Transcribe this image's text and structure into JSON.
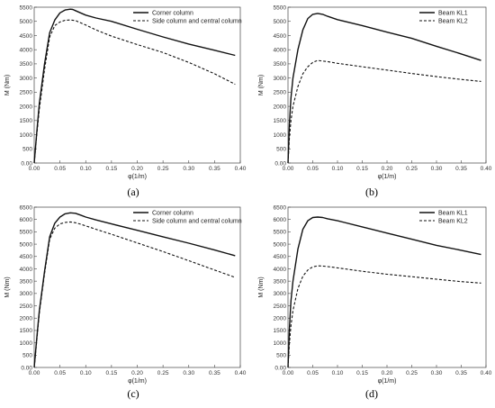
{
  "chart_data": [
    {
      "type": "line",
      "panel_label": "(a)",
      "xlabel": "φ(1/m)",
      "ylabel": "M (Nm)",
      "xlim": [
        0,
        0.4
      ],
      "ylim": [
        0,
        5500
      ],
      "xticks": [
        "0.00",
        "0.05",
        "0.10",
        "0.15",
        "0.20",
        "0.25",
        "0.30",
        "0.35",
        "0.40"
      ],
      "yticks": [
        "0.00",
        "500",
        "1000",
        "1500",
        "2000",
        "2500",
        "3000",
        "3500",
        "4000",
        "4500",
        "5000",
        "5500"
      ],
      "legend_position": "top-right",
      "series": [
        {
          "name": "Corner column",
          "style": "solid",
          "x": [
            0,
            0.005,
            0.01,
            0.02,
            0.03,
            0.04,
            0.05,
            0.06,
            0.07,
            0.075,
            0.08,
            0.09,
            0.1,
            0.12,
            0.15,
            0.2,
            0.25,
            0.3,
            0.35,
            0.39
          ],
          "y": [
            0,
            1100,
            2100,
            3500,
            4600,
            5050,
            5300,
            5400,
            5430,
            5420,
            5380,
            5300,
            5220,
            5120,
            5000,
            4720,
            4450,
            4200,
            3980,
            3800
          ]
        },
        {
          "name": "Side column and central column",
          "style": "dashed",
          "x": [
            0,
            0.005,
            0.01,
            0.02,
            0.03,
            0.04,
            0.05,
            0.06,
            0.07,
            0.08,
            0.09,
            0.1,
            0.12,
            0.15,
            0.2,
            0.25,
            0.3,
            0.35,
            0.39
          ],
          "y": [
            0,
            1000,
            1900,
            3300,
            4450,
            4850,
            4980,
            5040,
            5050,
            5030,
            4950,
            4870,
            4700,
            4480,
            4180,
            3900,
            3550,
            3150,
            2780
          ]
        }
      ]
    },
    {
      "type": "line",
      "panel_label": "(b)",
      "xlabel": "φ(1/m)",
      "ylabel": "M (Nm)",
      "xlim": [
        0,
        0.4
      ],
      "ylim": [
        0,
        5500
      ],
      "xticks": [
        "0.00",
        "0.05",
        "0.10",
        "0.15",
        "0.20",
        "0.25",
        "0.30",
        "0.35",
        "0.40"
      ],
      "yticks": [
        "0.00",
        "500",
        "1000",
        "1500",
        "2000",
        "2500",
        "3000",
        "3500",
        "4000",
        "4500",
        "5000",
        "5500"
      ],
      "legend_position": "top-right",
      "series": [
        {
          "name": "Beam KL1",
          "style": "solid",
          "x": [
            0,
            0.003,
            0.006,
            0.01,
            0.02,
            0.03,
            0.04,
            0.05,
            0.06,
            0.07,
            0.08,
            0.1,
            0.15,
            0.2,
            0.25,
            0.3,
            0.35,
            0.39
          ],
          "y": [
            0,
            1400,
            2300,
            3000,
            4000,
            4700,
            5100,
            5250,
            5280,
            5250,
            5180,
            5060,
            4850,
            4620,
            4400,
            4120,
            3850,
            3620
          ]
        },
        {
          "name": "Beam KL2",
          "style": "dashed",
          "x": [
            0,
            0.003,
            0.006,
            0.01,
            0.02,
            0.03,
            0.04,
            0.05,
            0.06,
            0.07,
            0.08,
            0.1,
            0.15,
            0.2,
            0.25,
            0.3,
            0.35,
            0.39
          ],
          "y": [
            0,
            900,
            1500,
            2000,
            2700,
            3150,
            3400,
            3550,
            3620,
            3600,
            3580,
            3520,
            3400,
            3280,
            3160,
            3050,
            2950,
            2880
          ]
        }
      ]
    },
    {
      "type": "line",
      "panel_label": "(c)",
      "xlabel": "φ(1/m)",
      "ylabel": "M (Nm)",
      "xlim": [
        0,
        0.4
      ],
      "ylim": [
        0,
        6500
      ],
      "xticks": [
        "0.00",
        "0.05",
        "0.10",
        "0.15",
        "0.20",
        "0.25",
        "0.30",
        "0.35",
        "0.40"
      ],
      "yticks": [
        "0.00",
        "500",
        "1000",
        "1500",
        "2000",
        "2500",
        "3000",
        "3500",
        "4000",
        "4500",
        "5000",
        "5500",
        "6000",
        "6500"
      ],
      "legend_position": "top-right",
      "series": [
        {
          "name": "Corner column",
          "style": "solid",
          "x": [
            0,
            0.005,
            0.01,
            0.02,
            0.03,
            0.04,
            0.05,
            0.06,
            0.07,
            0.08,
            0.09,
            0.1,
            0.12,
            0.15,
            0.2,
            0.25,
            0.3,
            0.35,
            0.39
          ],
          "y": [
            0,
            1200,
            2300,
            3900,
            5300,
            5850,
            6100,
            6230,
            6270,
            6250,
            6180,
            6100,
            5980,
            5820,
            5560,
            5300,
            5040,
            4760,
            4530
          ]
        },
        {
          "name": "Side column and central column",
          "style": "dashed",
          "x": [
            0,
            0.005,
            0.01,
            0.02,
            0.03,
            0.04,
            0.05,
            0.06,
            0.07,
            0.08,
            0.09,
            0.1,
            0.12,
            0.15,
            0.2,
            0.25,
            0.3,
            0.35,
            0.39
          ],
          "y": [
            0,
            1100,
            2200,
            3800,
            5200,
            5650,
            5820,
            5880,
            5900,
            5870,
            5810,
            5740,
            5600,
            5400,
            5050,
            4700,
            4330,
            3950,
            3650
          ]
        }
      ]
    },
    {
      "type": "line",
      "panel_label": "(d)",
      "xlabel": "φ(1/m)",
      "ylabel": "M (Nm)",
      "xlim": [
        0,
        0.4
      ],
      "ylim": [
        0,
        6500
      ],
      "xticks": [
        "0.00",
        "0.05",
        "0.10",
        "0.15",
        "0.20",
        "0.25",
        "0.30",
        "0.35",
        "0.40"
      ],
      "yticks": [
        "0.00",
        "500",
        "1000",
        "1500",
        "2000",
        "2500",
        "3000",
        "3500",
        "4000",
        "4500",
        "5000",
        "5500",
        "6000",
        "6500"
      ],
      "legend_position": "top-right",
      "series": [
        {
          "name": "Beam KL1",
          "style": "solid",
          "x": [
            0,
            0.003,
            0.006,
            0.01,
            0.02,
            0.03,
            0.04,
            0.05,
            0.06,
            0.07,
            0.08,
            0.1,
            0.15,
            0.2,
            0.25,
            0.3,
            0.35,
            0.39
          ],
          "y": [
            0,
            1600,
            2700,
            3500,
            4800,
            5600,
            5950,
            6080,
            6100,
            6080,
            6030,
            5950,
            5700,
            5450,
            5200,
            4950,
            4750,
            4580
          ]
        },
        {
          "name": "Beam KL2",
          "style": "dashed",
          "x": [
            0,
            0.003,
            0.006,
            0.01,
            0.02,
            0.03,
            0.04,
            0.05,
            0.06,
            0.07,
            0.08,
            0.1,
            0.15,
            0.2,
            0.25,
            0.3,
            0.35,
            0.39
          ],
          "y": [
            0,
            1000,
            1700,
            2300,
            3200,
            3700,
            3950,
            4080,
            4120,
            4110,
            4090,
            4040,
            3900,
            3780,
            3680,
            3580,
            3480,
            3420
          ]
        }
      ]
    }
  ]
}
